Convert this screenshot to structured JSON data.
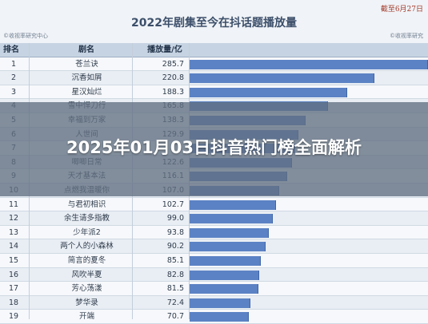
{
  "header": {
    "title": "2022年剧集至今在抖话题播放量",
    "stamp": "截至6月27日",
    "source_left": "©收视率研究中心",
    "source_right": "©收视率研究"
  },
  "table": {
    "columns": [
      "排名",
      "剧名",
      "播放量/亿"
    ],
    "rows": [
      {
        "rank": "1",
        "name": "苍兰诀",
        "plays": "285.7",
        "value": 285.7
      },
      {
        "rank": "2",
        "name": "沉香如屑",
        "plays": "220.8",
        "value": 220.8
      },
      {
        "rank": "3",
        "name": "星汉灿烂",
        "plays": "188.3",
        "value": 188.3
      },
      {
        "rank": "4",
        "name": "雪中悍刀行",
        "plays": "165.8",
        "value": 165.8
      },
      {
        "rank": "5",
        "name": "幸福到万家",
        "plays": "138.3",
        "value": 138.3
      },
      {
        "rank": "6",
        "name": "人世间",
        "plays": "129.9",
        "value": 129.9
      },
      {
        "rank": "7",
        "name": "",
        "plays": "",
        "value": 126.0
      },
      {
        "rank": "8",
        "name": "唧唧日常",
        "plays": "122.6",
        "value": 122.6
      },
      {
        "rank": "9",
        "name": "天才基本法",
        "plays": "116.1",
        "value": 116.1
      },
      {
        "rank": "10",
        "name": "点燃我温暖你",
        "plays": "107.0",
        "value": 107.0
      },
      {
        "rank": "11",
        "name": "与君初相识",
        "plays": "102.7",
        "value": 102.7
      },
      {
        "rank": "12",
        "name": "余生请多指教",
        "plays": "99.0",
        "value": 99.0
      },
      {
        "rank": "13",
        "name": "少年派2",
        "plays": "93.8",
        "value": 93.8
      },
      {
        "rank": "14",
        "name": "两个人的小森林",
        "plays": "90.2",
        "value": 90.2
      },
      {
        "rank": "15",
        "name": "简言的夏冬",
        "plays": "85.1",
        "value": 85.1
      },
      {
        "rank": "16",
        "name": "风吹半夏",
        "plays": "82.8",
        "value": 82.8
      },
      {
        "rank": "17",
        "name": "芳心荡漾",
        "plays": "81.5",
        "value": 81.5
      },
      {
        "rank": "18",
        "name": "梦华录",
        "plays": "72.4",
        "value": 72.4
      },
      {
        "rank": "19",
        "name": "开端",
        "plays": "70.7",
        "value": 70.7
      }
    ],
    "max_value": 285.7
  },
  "overlay": {
    "title": "2025年01月03日抖音热门榜全面解析"
  },
  "colors": {
    "bar": "#5b82c4",
    "header_bg": "#c6d3e2",
    "overlay": "#627082"
  }
}
